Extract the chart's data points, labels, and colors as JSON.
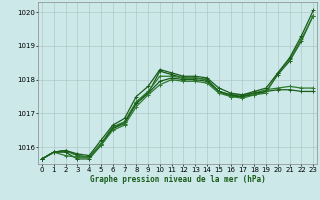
{
  "title": "Graphe pression niveau de la mer (hPa)",
  "bg_color": "#cce8e8",
  "grid_color": "#b0c8c8",
  "line_colors": [
    "#1a5c1a",
    "#2d7a2d",
    "#1a5c1a",
    "#2d7a2d",
    "#1a5c1a"
  ],
  "ylim": [
    1015.5,
    1020.3
  ],
  "xlim": [
    -0.3,
    23.3
  ],
  "yticks": [
    1016,
    1017,
    1018,
    1019,
    1020
  ],
  "xticks": [
    0,
    1,
    2,
    3,
    4,
    5,
    6,
    7,
    8,
    9,
    10,
    11,
    12,
    13,
    14,
    15,
    16,
    17,
    18,
    19,
    20,
    21,
    22,
    23
  ],
  "series": [
    [
      1015.65,
      1015.85,
      1015.9,
      1015.75,
      1015.7,
      1016.1,
      1016.55,
      1016.75,
      1017.3,
      1017.6,
      1018.25,
      1018.15,
      1018.05,
      1018.05,
      1018.0,
      1017.65,
      1017.5,
      1017.5,
      1017.55,
      1017.65,
      1018.15,
      1018.55,
      1019.15,
      1019.9
    ],
    [
      1015.65,
      1015.85,
      1015.9,
      1015.75,
      1015.7,
      1016.1,
      1016.6,
      1016.75,
      1017.35,
      1017.65,
      1018.1,
      1018.1,
      1018.05,
      1018.05,
      1018.0,
      1017.65,
      1017.55,
      1017.55,
      1017.6,
      1017.7,
      1017.75,
      1017.8,
      1017.75,
      1017.75
    ],
    [
      1015.65,
      1015.85,
      1015.85,
      1015.65,
      1015.65,
      1016.05,
      1016.55,
      1016.7,
      1017.3,
      1017.6,
      1017.95,
      1018.05,
      1018.0,
      1018.0,
      1017.95,
      1017.65,
      1017.55,
      1017.5,
      1017.6,
      1017.65,
      1017.7,
      1017.7,
      1017.65,
      1017.65
    ],
    [
      1015.65,
      1015.85,
      1015.75,
      1015.7,
      1015.7,
      1016.05,
      1016.5,
      1016.65,
      1017.2,
      1017.55,
      1017.85,
      1018.0,
      1017.95,
      1017.95,
      1017.9,
      1017.6,
      1017.5,
      1017.45,
      1017.55,
      1017.6,
      1018.2,
      1018.6,
      1019.2,
      1019.9
    ],
    [
      1015.65,
      1015.85,
      1015.9,
      1015.8,
      1015.75,
      1016.2,
      1016.65,
      1016.85,
      1017.5,
      1017.8,
      1018.3,
      1018.2,
      1018.1,
      1018.1,
      1018.05,
      1017.75,
      1017.6,
      1017.55,
      1017.65,
      1017.75,
      1018.2,
      1018.65,
      1019.3,
      1020.05
    ]
  ],
  "marker": "+",
  "markersize": 3,
  "linewidth": 0.9
}
